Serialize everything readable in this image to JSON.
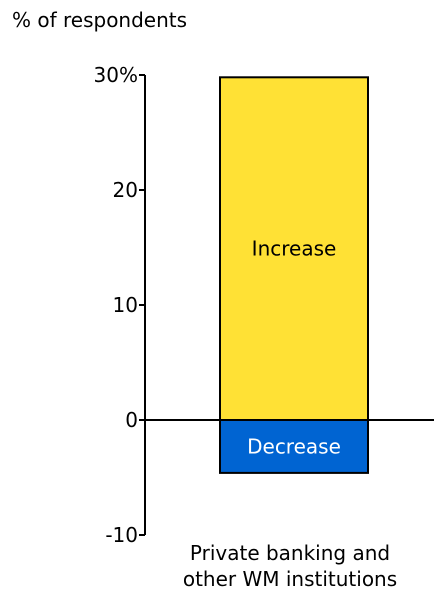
{
  "chart_data": {
    "type": "bar",
    "stacked": true,
    "ylabel": "% of respondents",
    "ylim": [
      -10,
      30
    ],
    "yticks": [
      {
        "value": 30,
        "label": "30%"
      },
      {
        "value": 20,
        "label": "20"
      },
      {
        "value": 10,
        "label": "10"
      },
      {
        "value": 0,
        "label": "0"
      },
      {
        "value": -10,
        "label": "-10"
      }
    ],
    "categories": [
      [
        "Private banking and",
        "other WM institutions"
      ]
    ],
    "series": [
      {
        "name": "Increase",
        "values": [
          29.8
        ],
        "color": "#ffe135"
      },
      {
        "name": "Decrease",
        "values": [
          -4.6
        ],
        "color": "#0064d2"
      }
    ],
    "bar_label_colors": {
      "Increase": "#000000",
      "Decrease": "#ffffff"
    },
    "grid": false,
    "legend": "none"
  }
}
